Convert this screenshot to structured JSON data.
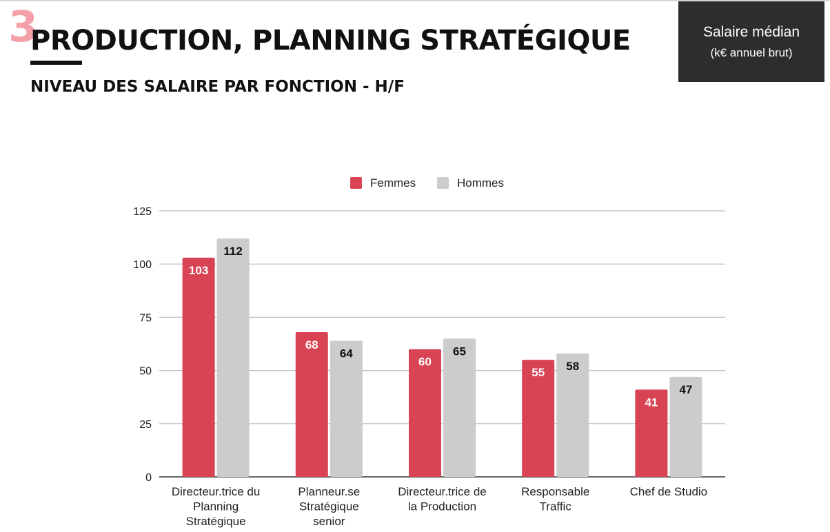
{
  "header": {
    "section_number": "3",
    "title": "PRODUCTION, PLANNING STRATÉGIQUE",
    "subtitle": "NIVEAU DES SALAIRE PAR FONCTION - H/F"
  },
  "info_box": {
    "line1": "Salaire médian",
    "line2": "(k€ annuel brut)"
  },
  "colors": {
    "femmes": "#d94455",
    "hommes": "#cccccc",
    "section_number": "#f4a0a8",
    "info_box_bg": "#2d2d2d"
  },
  "chart_data": {
    "type": "bar",
    "title": "",
    "xlabel": "",
    "ylabel": "",
    "ylim": [
      0,
      125
    ],
    "yticks": [
      0,
      25,
      50,
      75,
      100,
      125
    ],
    "grid": true,
    "legend_position": "top-center",
    "categories": [
      [
        "Directeur.trice du",
        "Planning",
        "Stratégique"
      ],
      [
        "Planneur.se",
        "Stratégique",
        "senior"
      ],
      [
        "Directeur.trice de",
        "la Production"
      ],
      [
        "Responsable",
        "Traffic"
      ],
      [
        "Chef de Studio"
      ]
    ],
    "series": [
      {
        "name": "Femmes",
        "color": "#d94455",
        "label_color": "#ffffff",
        "values": [
          103,
          68,
          60,
          55,
          41
        ]
      },
      {
        "name": "Hommes",
        "color": "#cccccc",
        "label_color": "#111111",
        "values": [
          112,
          64,
          65,
          58,
          47
        ]
      }
    ]
  }
}
